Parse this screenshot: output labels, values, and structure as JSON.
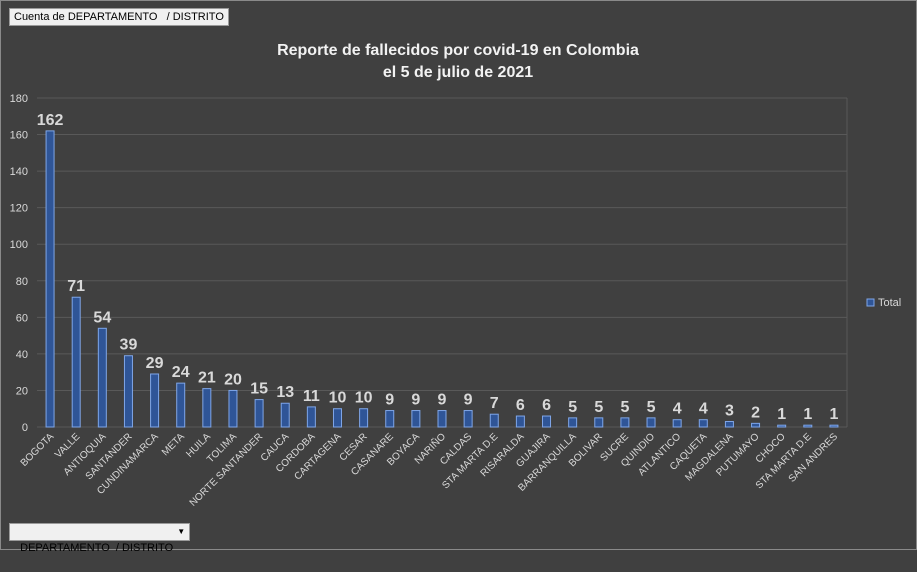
{
  "filter_field": "Cuenta de DEPARTAMENTO   / DISTRITO",
  "axis_field": "DEPARTAMENTO  / DISTRITO",
  "colors": {
    "background": "#404040",
    "bar_fill": "#2f5597",
    "bar_edge": "#7fa6e8",
    "grid": "#595959",
    "text": "#d9d9d9"
  },
  "chart_data": {
    "type": "bar",
    "title": "Reporte de fallecidos por covid-19 en Colombia",
    "subtitle": "el 5 de julio de 2021",
    "ylim": [
      0,
      180
    ],
    "yticks": [
      0,
      20,
      40,
      60,
      80,
      100,
      120,
      140,
      160,
      180
    ],
    "grid": true,
    "legend_position": "right",
    "categories": [
      "BOGOTA",
      "VALLE",
      "ANTIOQUIA",
      "SANTANDER",
      "CUNDINAMARCA",
      "META",
      "HUILA",
      "TOLIMA",
      "NORTE SANTANDER",
      "CAUCA",
      "CORDOBA",
      "CARTAGENA",
      "CESAR",
      "CASANARE",
      "BOYACA",
      "NARIÑO",
      "CALDAS",
      "STA MARTA D.E",
      "RISARALDA",
      "GUAJIRA",
      "BARRANQUILLA",
      "BOLIVAR",
      "SUCRE",
      "QUINDIO",
      "ATLANTICO",
      "CAQUETA",
      "MAGDALENA",
      "PUTUMAYO",
      "CHOCO",
      "STA MARTA D.E",
      "SAN ANDRES"
    ],
    "series": [
      {
        "name": "Total",
        "values": [
          162,
          71,
          54,
          39,
          29,
          24,
          21,
          20,
          15,
          13,
          11,
          10,
          10,
          9,
          9,
          9,
          9,
          7,
          6,
          6,
          5,
          5,
          5,
          5,
          4,
          4,
          3,
          2,
          1,
          1,
          1
        ]
      }
    ]
  }
}
